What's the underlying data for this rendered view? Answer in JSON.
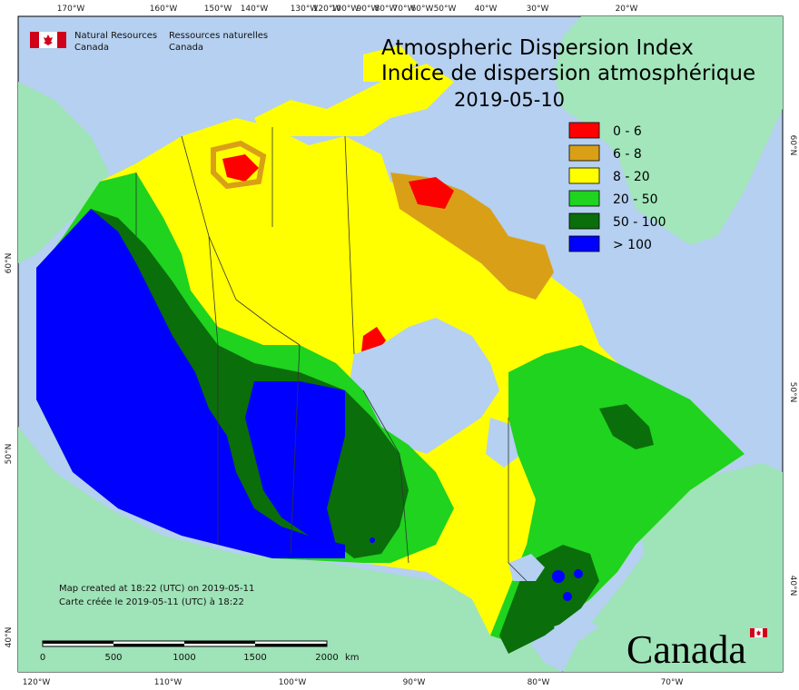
{
  "header": {
    "dept_en_line1": "Natural Resources",
    "dept_en_line2": "Canada",
    "dept_fr_line1": "Ressources naturelles",
    "dept_fr_line2": "Canada"
  },
  "title": {
    "en": "Atmospheric Dispersion Index",
    "fr": "Indice de dispersion atmosphérique",
    "date": "2019-05-10"
  },
  "legend": [
    {
      "label": "0 - 6",
      "color": "#ff0000"
    },
    {
      "label": "6 - 8",
      "color": "#d9a017"
    },
    {
      "label": "8 - 20",
      "color": "#ffff00"
    },
    {
      "label": "20 - 50",
      "color": "#1fd31f"
    },
    {
      "label": "50 - 100",
      "color": "#0a6e0a"
    },
    {
      "label": "> 100",
      "color": "#0000ff"
    }
  ],
  "colors": {
    "ocean": "#b5d0f0",
    "land": "#9fe3b8",
    "greenland": "#a3e6bc",
    "border": "#333333"
  },
  "axes": {
    "top": [
      "170°W",
      "160°W",
      "150°W",
      "140°W",
      "130°W",
      "120°W",
      "100°W",
      "90°W",
      "80°W",
      "70°W",
      "60°W",
      "50°W",
      "40°W",
      "30°W",
      "20°W"
    ],
    "bottom": [
      "120°W",
      "110°W",
      "100°W",
      "90°W",
      "80°W",
      "70°W"
    ],
    "left": [
      "60°N",
      "50°N",
      "40°N"
    ],
    "right": [
      "60°N",
      "50°N",
      "40°N"
    ]
  },
  "credits": {
    "en": "Map created at 18:22 (UTC) on 2019-05-11",
    "fr": "Carte créée le 2019-05-11 (UTC) à 18:22"
  },
  "scalebar": {
    "ticks": [
      "0",
      "500",
      "1000",
      "1500",
      "2000"
    ],
    "unit": "km"
  },
  "wordmark": "Canada"
}
